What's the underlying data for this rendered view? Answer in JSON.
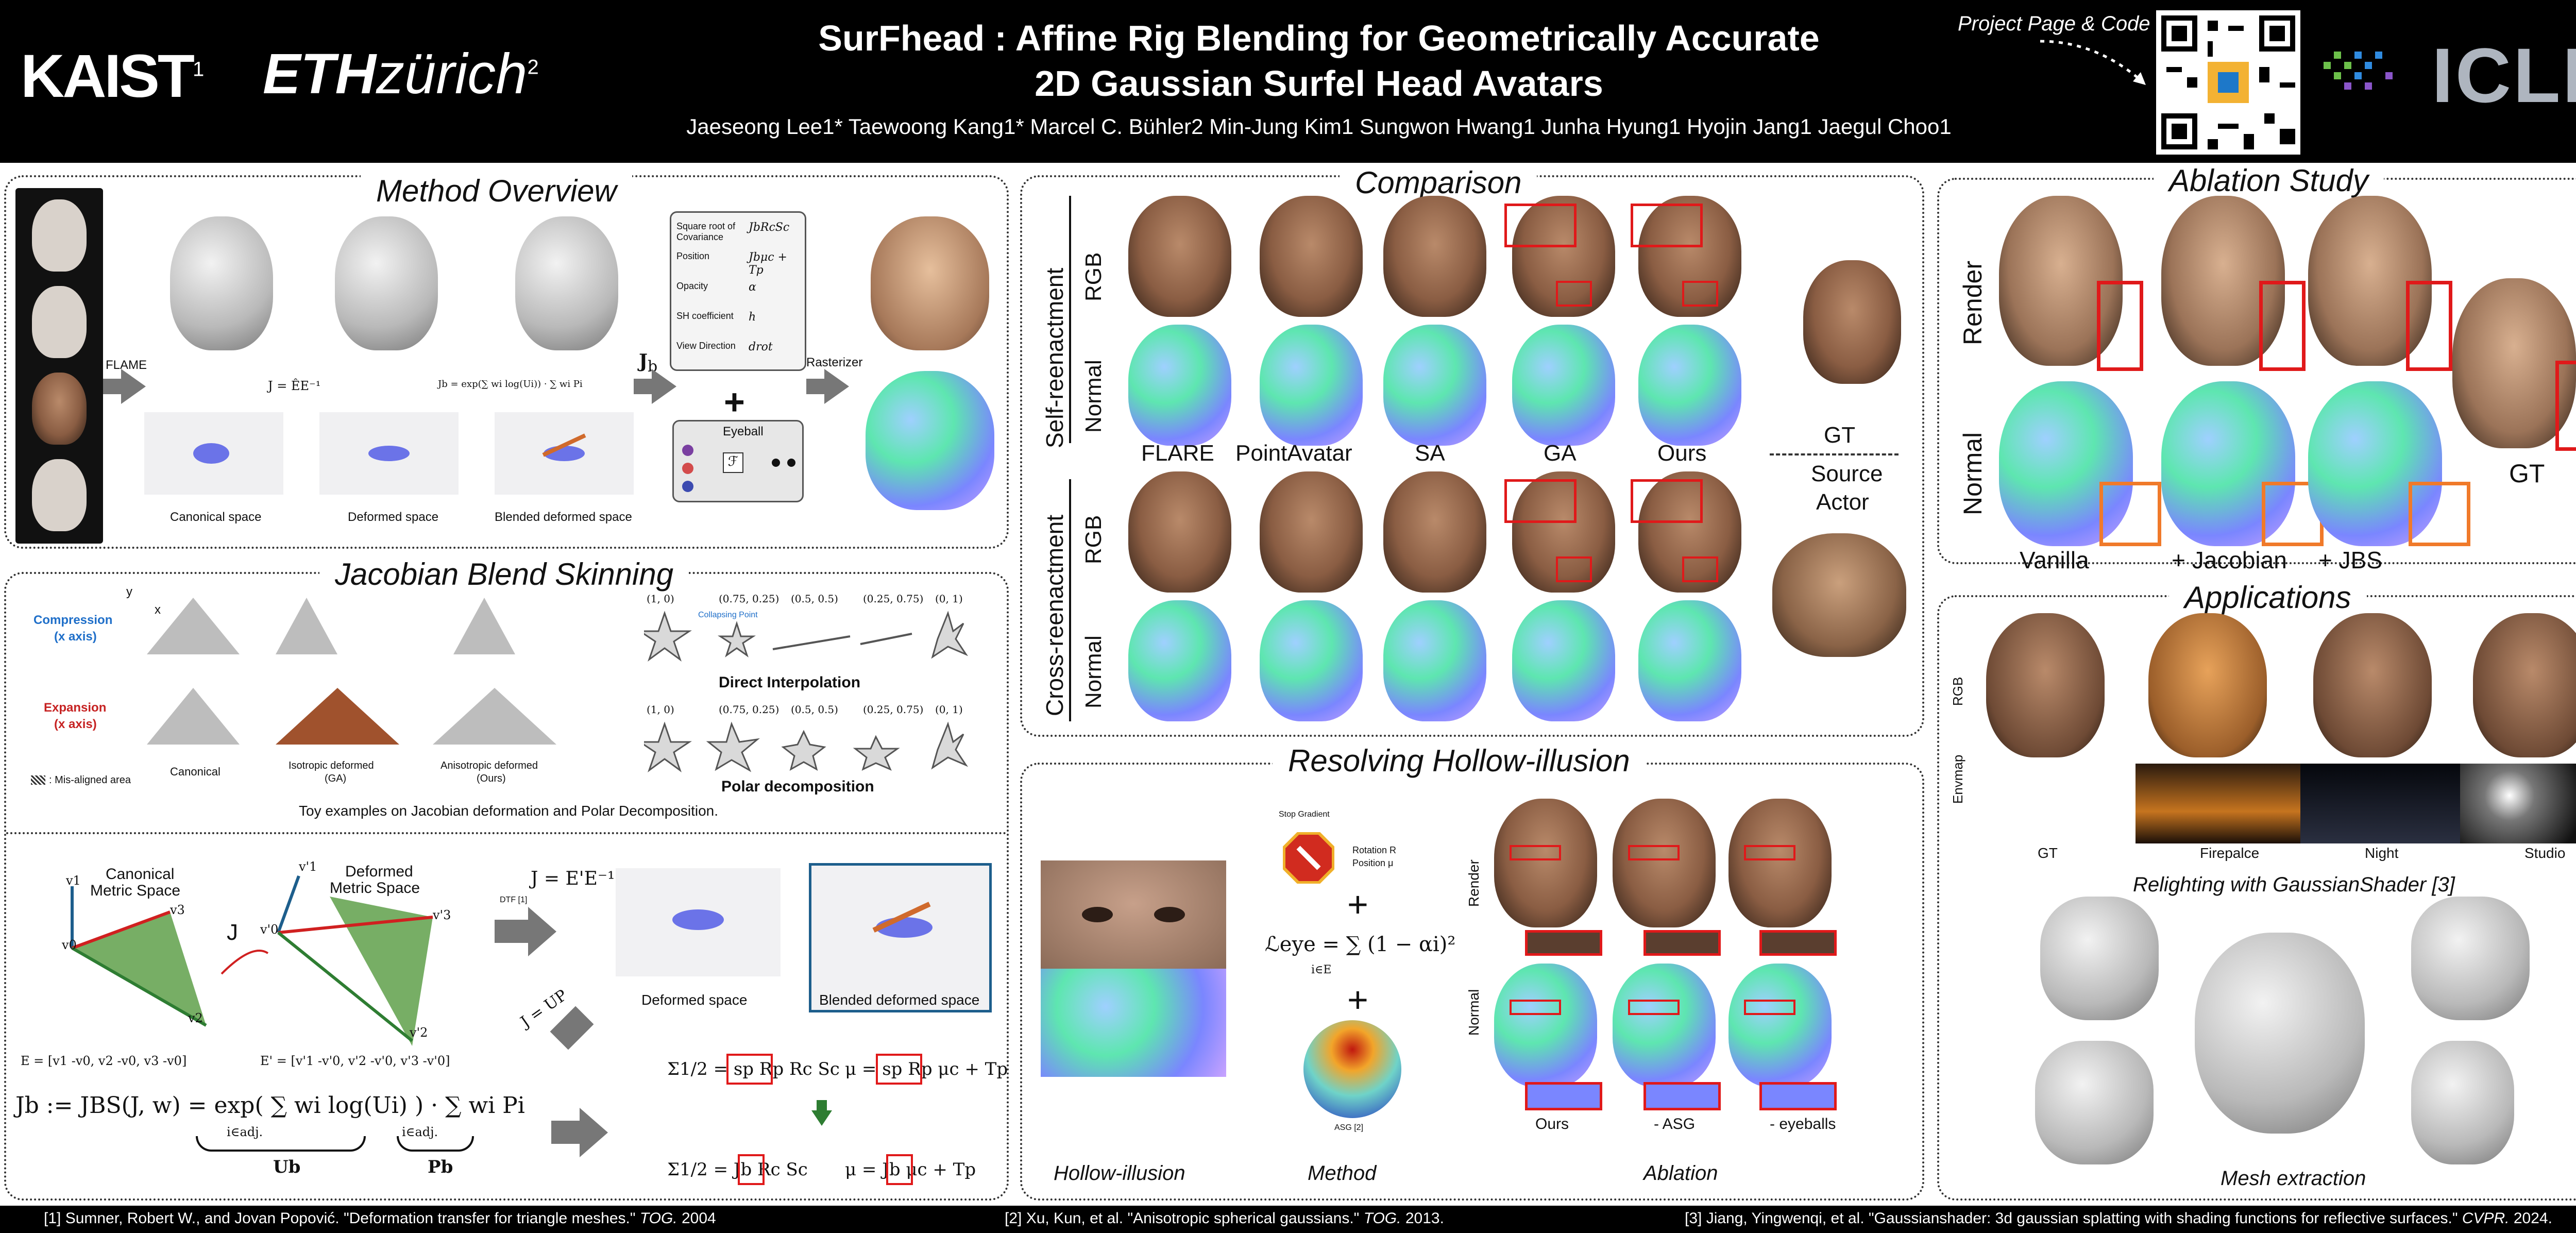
{
  "header": {
    "title_line1": "SurFhead : Affine Rig Blending for Geometrically Accurate",
    "title_line2": "2D Gaussian Surfel Head Avatars",
    "authors": "Jaeseong Lee1* Taewoong Kang1* Marcel C. Bühler2 Min-Jung Kim1 Sungwon Hwang1 Junha Hyung1 Hyojin Jang1 Jaegul Choo1",
    "logo_kaist": "KAIST",
    "logo_kaist_sup": "1",
    "logo_eth_bold": "ETH",
    "logo_eth_rest": "zürich",
    "logo_eth_sup": "2",
    "project_label": "Project Page & Code",
    "iclr": "ICLR"
  },
  "method_overview": {
    "title": "Method Overview",
    "flame": "FLAME",
    "canonical": "Canonical space",
    "deformed": "Deformed space",
    "blended": "Blended deformed space",
    "rasterizer": "Rasterizer",
    "jb": "J",
    "jb_sub": "b",
    "eq_jhat": "J = ÊE⁻¹",
    "eq_jb": "Jb = exp(∑ wi log(Ui)) · ∑ wi Pi",
    "attrs": [
      {
        "name": "Square root of Covariance",
        "eq": "JbRcSc"
      },
      {
        "name": "Position",
        "eq": "Jbμc + Tp"
      },
      {
        "name": "Opacity",
        "eq": "α"
      },
      {
        "name": "SH coefficient",
        "eq": "h"
      },
      {
        "name": "View Direction",
        "eq": "drot"
      }
    ],
    "eyeball": "Eyeball"
  },
  "jbs": {
    "title": "Jacobian Blend Skinning",
    "compression": "Compression",
    "compression_axis": "(x axis)",
    "expansion": "Expansion",
    "expansion_axis": "(x axis)",
    "axis_y": "y",
    "axis_x": "x",
    "canonical": "Canonical",
    "isotropic": "Isotropic deformed",
    "isotropic_sub": "(GA)",
    "anisotropic": "Anisotropic deformed",
    "anisotropic_sub": "(Ours)",
    "misaligned": ": Mis-aligned area",
    "direct_interp": "Direct Interpolation",
    "polar": "Polar decomposition",
    "collapsing": "Collapsing Point",
    "weights": [
      "(1, 0)",
      "(0.75, 0.25)",
      "(0.5, 0.5)",
      "(0.25, 0.75)",
      "(0, 1)"
    ],
    "caption": "Toy examples on Jacobian deformation and Polar Decomposition."
  },
  "jbs_lower": {
    "canonical_metric": "Canonical",
    "canonical_metric2": "Metric Space",
    "deformed_metric": "Deformed",
    "deformed_metric2": "Metric Space",
    "j": "J",
    "eq_j": "J = E'E⁻¹",
    "dtf": "DTF [1]",
    "eq_jup": "J = UP",
    "e_def": "E = [v1 -v0, v2 -v0, v3 -v0]",
    "e_prime_def": "E' = [v'1 -v'0, v'2 -v'0, v'3 -v'0]",
    "deformed_space": "Deformed space",
    "blended_space": "Blended deformed space",
    "eq_jbs": "Jb := JBS(J, w) = exp( ∑ wi log(Ui) ) · ∑ wi Pi",
    "ub": "Ub",
    "pb": "Pb",
    "sum_sub": "i∈adj.",
    "eq_sigma_top": "Σ1/2 = sp Rp Rc Sc",
    "eq_mu_top": "μ = sp Rp μc + Tp",
    "eq_sigma_bot": "Σ1/2 = Jb Rc Sc",
    "eq_mu_bot": "μ = Jb μc + Tp",
    "vertices": [
      "v1",
      "v0",
      "v3",
      "v2",
      "v'1",
      "v'0",
      "v'3",
      "v'2"
    ]
  },
  "comparison": {
    "title": "Comparison",
    "self_reenact": "Self-reenactment",
    "cross_reenact": "Cross-reenactment",
    "rgb": "RGB",
    "normal": "Normal",
    "methods": [
      "FLARE",
      "PointAvatar",
      "SA",
      "GA",
      "Ours"
    ],
    "gt": "GT",
    "source": "Source",
    "actor": "Actor"
  },
  "ablation": {
    "title": "Ablation Study",
    "render": "Render",
    "normal": "Normal",
    "cols": [
      "Vanilla",
      "+ Jacobian",
      "+ JBS"
    ],
    "gt": "GT"
  },
  "applications": {
    "title": "Applications",
    "rgb": "RGB",
    "envmap": "Envmap",
    "envs": [
      "GT",
      "Firepalce",
      "Night",
      "Studio"
    ],
    "relight": "Relighting with GaussianShader [3]",
    "mesh": "Mesh extraction"
  },
  "hollow": {
    "title": "Resolving Hollow-illusion",
    "col_hollow": "Hollow-illusion",
    "col_method": "Method",
    "col_ablation": "Ablation",
    "stop_gradient": "Stop Gradient",
    "rotation": "Rotation R",
    "position": "Position μ",
    "eq_eye": "ℒeye = ∑ (1 − αi)²",
    "eq_sub": "i∈E",
    "asg": "ASG [2]",
    "render": "Render",
    "normal": "Normal",
    "ablations": [
      "Ours",
      "- ASG",
      "- eyeballs"
    ]
  },
  "refs": {
    "r1_a": "[1] Sumner, Robert W., and Jovan Popović. \"Deformation transfer for triangle meshes.\"",
    "r1_b": "TOG.",
    "r1_c": "2004",
    "r2_a": "[2] Xu, Kun, et al. \"Anisotropic spherical gaussians.\"",
    "r2_b": "TOG.",
    "r2_c": "2013.",
    "r3_a": "[3] Jiang, Yingwenqi, et al. \"Gaussianshader: 3d gaussian splatting with shading functions for reflective surfaces.\"",
    "r3_b": "CVPR.",
    "r3_c": "2024."
  },
  "colors": {
    "header_bg": "#000000",
    "red_box": "#e0191a",
    "orange_box": "#f07a2a",
    "compression": "#1f6fc9",
    "expansion": "#c62222",
    "blend_frame": "#1d5e8c"
  }
}
